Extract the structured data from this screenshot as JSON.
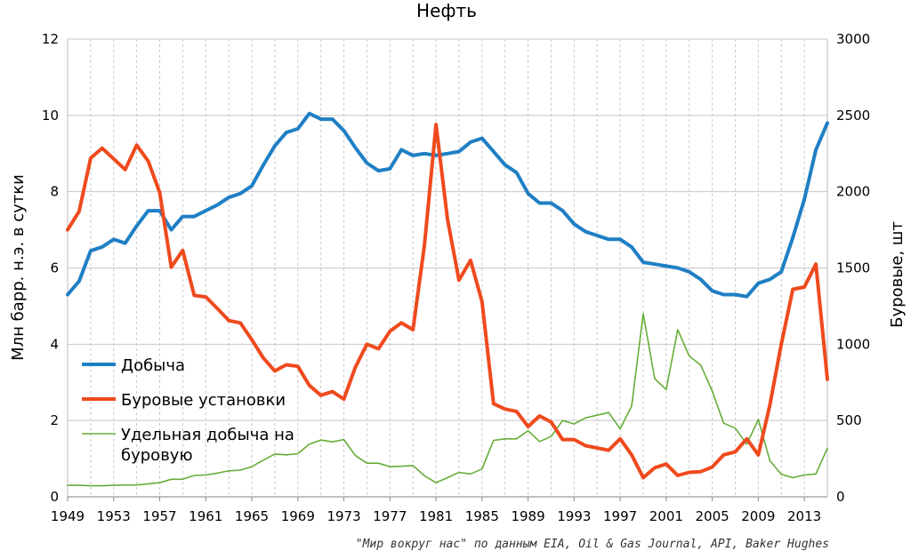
{
  "chart_data": {
    "type": "line",
    "title": "Нефть",
    "ylabel_left": "Млн барр. н.э. в сутки",
    "ylabel_right": "Буровые, шт",
    "source": "\"Мир вокруг нас\" по данным EIA, Oil & Gas Journal, API, Baker Hughes",
    "xlim": [
      1949,
      2015
    ],
    "ylim_left": [
      0,
      12
    ],
    "ylim_right": [
      0,
      3000
    ],
    "x_ticks": [
      "1949",
      "1953",
      "1957",
      "1961",
      "1965",
      "1969",
      "1973",
      "1977",
      "1981",
      "1985",
      "1989",
      "1993",
      "1997",
      "2001",
      "2005",
      "2009",
      "2013"
    ],
    "y_ticks_left": [
      "0",
      "2",
      "4",
      "6",
      "8",
      "10",
      "12"
    ],
    "y_ticks_right": [
      "0",
      "500",
      "1000",
      "1500",
      "2000",
      "2500",
      "3000"
    ],
    "grid": true,
    "legend_position": "left-bottom",
    "x": [
      1949,
      1950,
      1951,
      1952,
      1953,
      1954,
      1955,
      1956,
      1957,
      1958,
      1959,
      1960,
      1961,
      1962,
      1963,
      1964,
      1965,
      1966,
      1967,
      1968,
      1969,
      1970,
      1971,
      1972,
      1973,
      1974,
      1975,
      1976,
      1977,
      1978,
      1979,
      1980,
      1981,
      1982,
      1983,
      1984,
      1985,
      1986,
      1987,
      1988,
      1989,
      1990,
      1991,
      1992,
      1993,
      1994,
      1995,
      1996,
      1997,
      1998,
      1999,
      2000,
      2001,
      2002,
      2003,
      2004,
      2005,
      2006,
      2007,
      2008,
      2009,
      2010,
      2011,
      2012,
      2013,
      2014,
      2015
    ],
    "series": [
      {
        "name": "Добыча",
        "axis": "left",
        "color": "#1f7fc4",
        "width": 4,
        "values": [
          5.3,
          5.65,
          6.45,
          6.55,
          6.75,
          6.65,
          7.1,
          7.5,
          7.5,
          7.0,
          7.35,
          7.35,
          7.5,
          7.65,
          7.85,
          7.95,
          8.15,
          8.7,
          9.2,
          9.55,
          9.65,
          10.05,
          9.9,
          9.9,
          9.6,
          9.15,
          8.75,
          8.55,
          8.6,
          9.1,
          8.95,
          9.0,
          8.95,
          9.0,
          9.05,
          9.3,
          9.4,
          9.05,
          8.7,
          8.5,
          7.95,
          7.7,
          7.7,
          7.5,
          7.15,
          6.95,
          6.85,
          6.75,
          6.75,
          6.55,
          6.15,
          6.1,
          6.05,
          6.0,
          5.9,
          5.7,
          5.4,
          5.3,
          5.3,
          5.25,
          5.6,
          5.7,
          5.9,
          6.8,
          7.8,
          9.1,
          9.8
        ]
      },
      {
        "name": "Буровые установки",
        "axis": "right",
        "color": "#ef4a1e",
        "width": 4,
        "values": [
          1750,
          1870,
          2220,
          2285,
          2215,
          2145,
          2305,
          2200,
          1995,
          1505,
          1615,
          1320,
          1310,
          1235,
          1155,
          1140,
          1030,
          910,
          825,
          865,
          855,
          730,
          665,
          690,
          640,
          850,
          1000,
          970,
          1085,
          1140,
          1095,
          1650,
          2440,
          1820,
          1420,
          1550,
          1280,
          610,
          575,
          560,
          460,
          530,
          490,
          375,
          375,
          335,
          320,
          305,
          380,
          275,
          125,
          190,
          215,
          140,
          160,
          165,
          195,
          275,
          295,
          380,
          275,
          600,
          1000,
          1360,
          1375,
          1525,
          770
        ]
      },
      {
        "name": "Удельная добыча на буровую",
        "axis": "left",
        "color": "#66ad38",
        "width": 1.6,
        "values": [
          0.3,
          0.3,
          0.29,
          0.29,
          0.3,
          0.31,
          0.31,
          0.34,
          0.37,
          0.46,
          0.46,
          0.56,
          0.57,
          0.62,
          0.68,
          0.7,
          0.79,
          0.96,
          1.12,
          1.1,
          1.13,
          1.38,
          1.49,
          1.44,
          1.5,
          1.08,
          0.88,
          0.88,
          0.79,
          0.8,
          0.82,
          0.55,
          0.37,
          0.5,
          0.64,
          0.6,
          0.73,
          1.48,
          1.52,
          1.52,
          1.73,
          1.45,
          1.58,
          2.0,
          1.91,
          2.07,
          2.14,
          2.21,
          1.78,
          2.38,
          4.8,
          3.1,
          2.81,
          4.38,
          3.69,
          3.45,
          2.77,
          1.93,
          1.8,
          1.38,
          2.03,
          0.95,
          0.59,
          0.5,
          0.57,
          0.6,
          1.27
        ]
      }
    ]
  }
}
